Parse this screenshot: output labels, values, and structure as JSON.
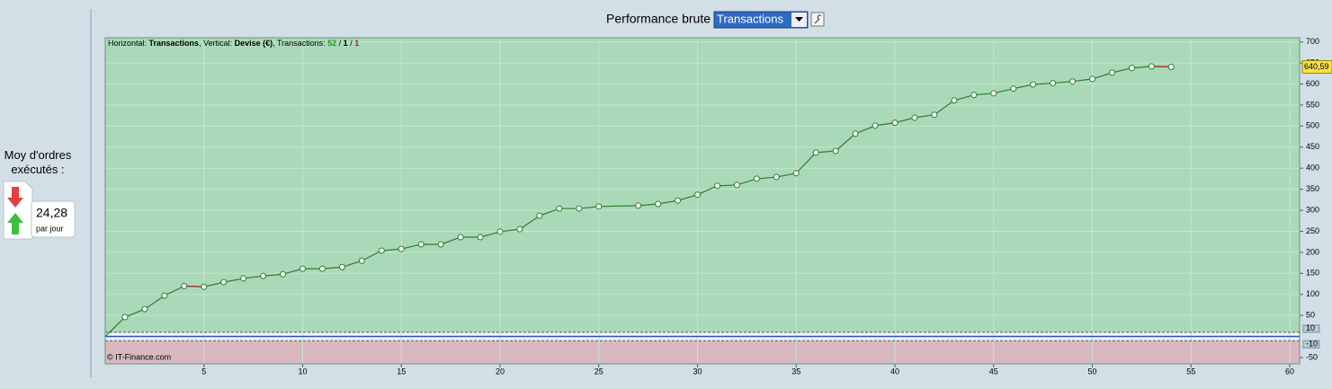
{
  "toolbar": {
    "label": "Performance brute",
    "select": "Transactions"
  },
  "sidebar": {
    "title": "Moy d'ordres exécutés :",
    "value": "24,28",
    "unit": "par jour"
  },
  "chart_data": {
    "type": "line",
    "header": [
      {
        "text": "Horizontal: "
      },
      {
        "text": "Transactions",
        "bold": true
      },
      {
        "text": ", Vertical: "
      },
      {
        "text": "Devise (€)",
        "bold": true
      },
      {
        "text": ", Transactions: "
      },
      {
        "text": "52",
        "bold": true,
        "color": "#1a9a1a"
      },
      {
        "text": " / "
      },
      {
        "text": "1",
        "bold": true
      },
      {
        "text": " / "
      },
      {
        "text": "1",
        "bold": true,
        "color": "#b22222"
      }
    ],
    "footer": "© IT-Finance.com",
    "x": [
      0,
      1,
      2,
      3,
      4,
      5,
      6,
      7,
      8,
      9,
      10,
      11,
      12,
      13,
      14,
      15,
      16,
      17,
      18,
      19,
      20,
      21,
      22,
      23,
      24,
      25,
      27,
      28,
      29,
      30,
      31,
      32,
      33,
      34,
      35,
      36,
      37,
      38,
      39,
      40,
      41,
      42,
      43,
      44,
      45,
      46,
      47,
      48,
      49,
      50,
      51,
      52,
      53,
      54
    ],
    "values": [
      0,
      46,
      65,
      97,
      120,
      118,
      129,
      138,
      144,
      148,
      161,
      161,
      165,
      180,
      204,
      208,
      219,
      219,
      236,
      236,
      249,
      255,
      287,
      304,
      304,
      309,
      311,
      315,
      323,
      337,
      358,
      360,
      375,
      379,
      388,
      437,
      441,
      482,
      501,
      508,
      520,
      527,
      561,
      574,
      578,
      589,
      599,
      602,
      606,
      612,
      627,
      638,
      642,
      640.59
    ],
    "value_labels": [
      null,
      null,
      null,
      null,
      null,
      null,
      null,
      null,
      null,
      null,
      null,
      null,
      null,
      null,
      null,
      null,
      null,
      null,
      null,
      null,
      null,
      null,
      null,
      null,
      null,
      null,
      null,
      null,
      null,
      null,
      null,
      null,
      null,
      null,
      null,
      null,
      null,
      null,
      null,
      null,
      null,
      null,
      null,
      null,
      null,
      null,
      null,
      null,
      null,
      null,
      null,
      null,
      null,
      "640,59"
    ],
    "color": "#2e7d32",
    "down_color": "#b03030",
    "xlim": [
      0,
      60.5
    ],
    "ylim": [
      -65,
      710
    ],
    "xticks": [
      5,
      10,
      15,
      20,
      25,
      30,
      35,
      40,
      45,
      50,
      55,
      60
    ],
    "yticks": [
      700,
      650,
      600,
      550,
      500,
      450,
      400,
      350,
      300,
      250,
      200,
      150,
      100,
      50,
      -50
    ],
    "thresholds": [
      10,
      -10
    ],
    "grid": true
  }
}
